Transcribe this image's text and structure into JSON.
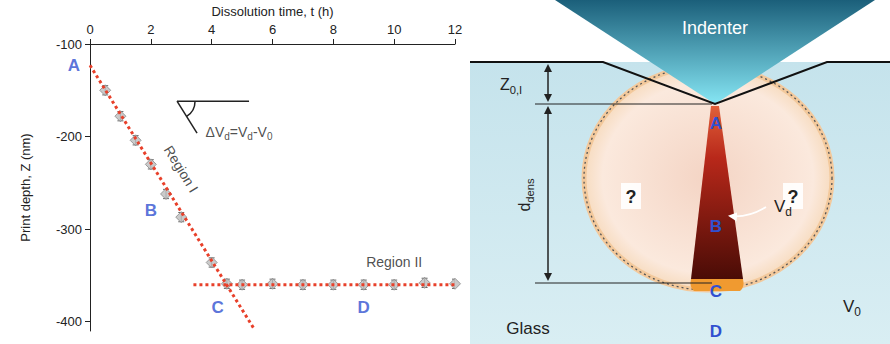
{
  "chart_data": {
    "type": "scatter",
    "x_label": "Dissolution time, t (h)",
    "y_label": "Print depth, Z (nm)",
    "x": [
      0.5,
      1,
      1.5,
      2,
      2.5,
      3,
      4,
      4.5,
      5,
      6,
      7,
      8,
      9,
      10,
      11,
      12
    ],
    "values": [
      -150,
      -178,
      -204,
      -230,
      -262,
      -287,
      -336,
      -359,
      -360,
      -359,
      -360,
      -360,
      -360,
      -360,
      -358,
      -359
    ],
    "errors": [
      5,
      5,
      5,
      5,
      5,
      5,
      5,
      5,
      5,
      5,
      5,
      5,
      5,
      5,
      5,
      5
    ],
    "color": "#bdbdbd",
    "marker": "diamond",
    "xlim": [
      0,
      12
    ],
    "xticks": [
      0,
      2,
      4,
      6,
      8,
      10,
      12
    ],
    "ylim": [
      -410,
      -100
    ],
    "yticks": [
      -400,
      -300,
      -200,
      -100
    ],
    "grid": false,
    "fit_lines": [
      {
        "label": "Region I",
        "x": [
          0,
          5.4
        ],
        "values": [
          -123,
          -408
        ],
        "label_at": [
          3.0,
          -235
        ],
        "color": "#e8402a",
        "line_style": "dotted"
      },
      {
        "label": "Region II",
        "x": [
          3.4,
          12
        ],
        "values": [
          -360,
          -360
        ],
        "label_at": [
          10,
          -335
        ],
        "color": "#e8402a",
        "line_style": "dotted"
      }
    ],
    "annotations": [
      {
        "text": "A",
        "x": 0,
        "y": -123,
        "color": "#3050d0"
      },
      {
        "text": "B",
        "x": 2,
        "y": -280,
        "color": "#3050d0"
      },
      {
        "text": "C",
        "x": 4.2,
        "y": -385,
        "color": "#3050d0"
      },
      {
        "text": "D",
        "x": 9,
        "y": -385,
        "color": "#3050d0"
      },
      {
        "parts": [
          {
            "text": "ΔV"
          },
          {
            "text": "d",
            "sub": true
          },
          {
            "text": "=V"
          },
          {
            "text": "d",
            "sub": true
          },
          {
            "text": "-V"
          },
          {
            "text": "0",
            "sub": true
          }
        ],
        "x": 4.9,
        "y": -195,
        "color": "#222222"
      }
    ]
  },
  "diagram": {
    "indenter": "Indenter",
    "z_label": [
      {
        "text": "Z"
      },
      {
        "text": "0,I",
        "sub": true
      }
    ],
    "d_label": [
      {
        "text": "d"
      },
      {
        "text": "dens",
        "sub": true
      }
    ],
    "points": [
      "A",
      "B",
      "C",
      "D"
    ],
    "vd_label": [
      {
        "text": "V"
      },
      {
        "text": "d",
        "sub": true
      }
    ],
    "v0_label": [
      {
        "text": "V"
      },
      {
        "text": "0",
        "sub": true
      }
    ],
    "unknown": [
      "?",
      "?"
    ],
    "glass": "Glass"
  }
}
